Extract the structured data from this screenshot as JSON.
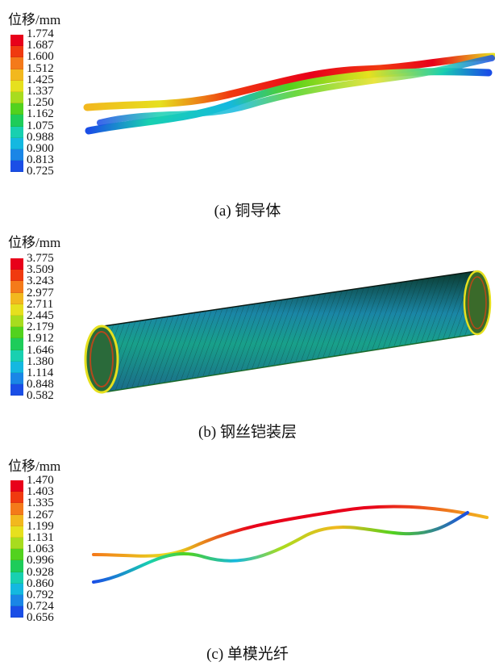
{
  "panels": [
    {
      "legend_title": "位移/mm",
      "legend_values": [
        "1.774",
        "1.687",
        "1.600",
        "1.512",
        "1.425",
        "1.337",
        "1.250",
        "1.162",
        "1.075",
        "0.988",
        "0.900",
        "0.813",
        "0.725"
      ],
      "caption": "(a) 铜导体"
    },
    {
      "legend_title": "位移/mm",
      "legend_values": [
        "3.775",
        "3.509",
        "3.243",
        "2.977",
        "2.711",
        "2.445",
        "2.179",
        "1.912",
        "1.646",
        "1.380",
        "1.114",
        "0.848",
        "0.582"
      ],
      "caption": "(b) 钢丝铠装层"
    },
    {
      "legend_title": "位移/mm",
      "legend_values": [
        "1.470",
        "1.403",
        "1.335",
        "1.267",
        "1.199",
        "1.131",
        "1.063",
        "0.996",
        "0.928",
        "0.860",
        "0.792",
        "0.724",
        "0.656"
      ],
      "caption": "(c) 单模光纤"
    }
  ],
  "colors": {
    "scale": [
      "#e8001a",
      "#f03a10",
      "#f47a1a",
      "#f2b81e",
      "#e6e01e",
      "#a8dc1e",
      "#52d21e",
      "#1ecc5a",
      "#18d0b0",
      "#14b8e0",
      "#1a86e6",
      "#1a4ee6",
      "#1414dc"
    ]
  }
}
